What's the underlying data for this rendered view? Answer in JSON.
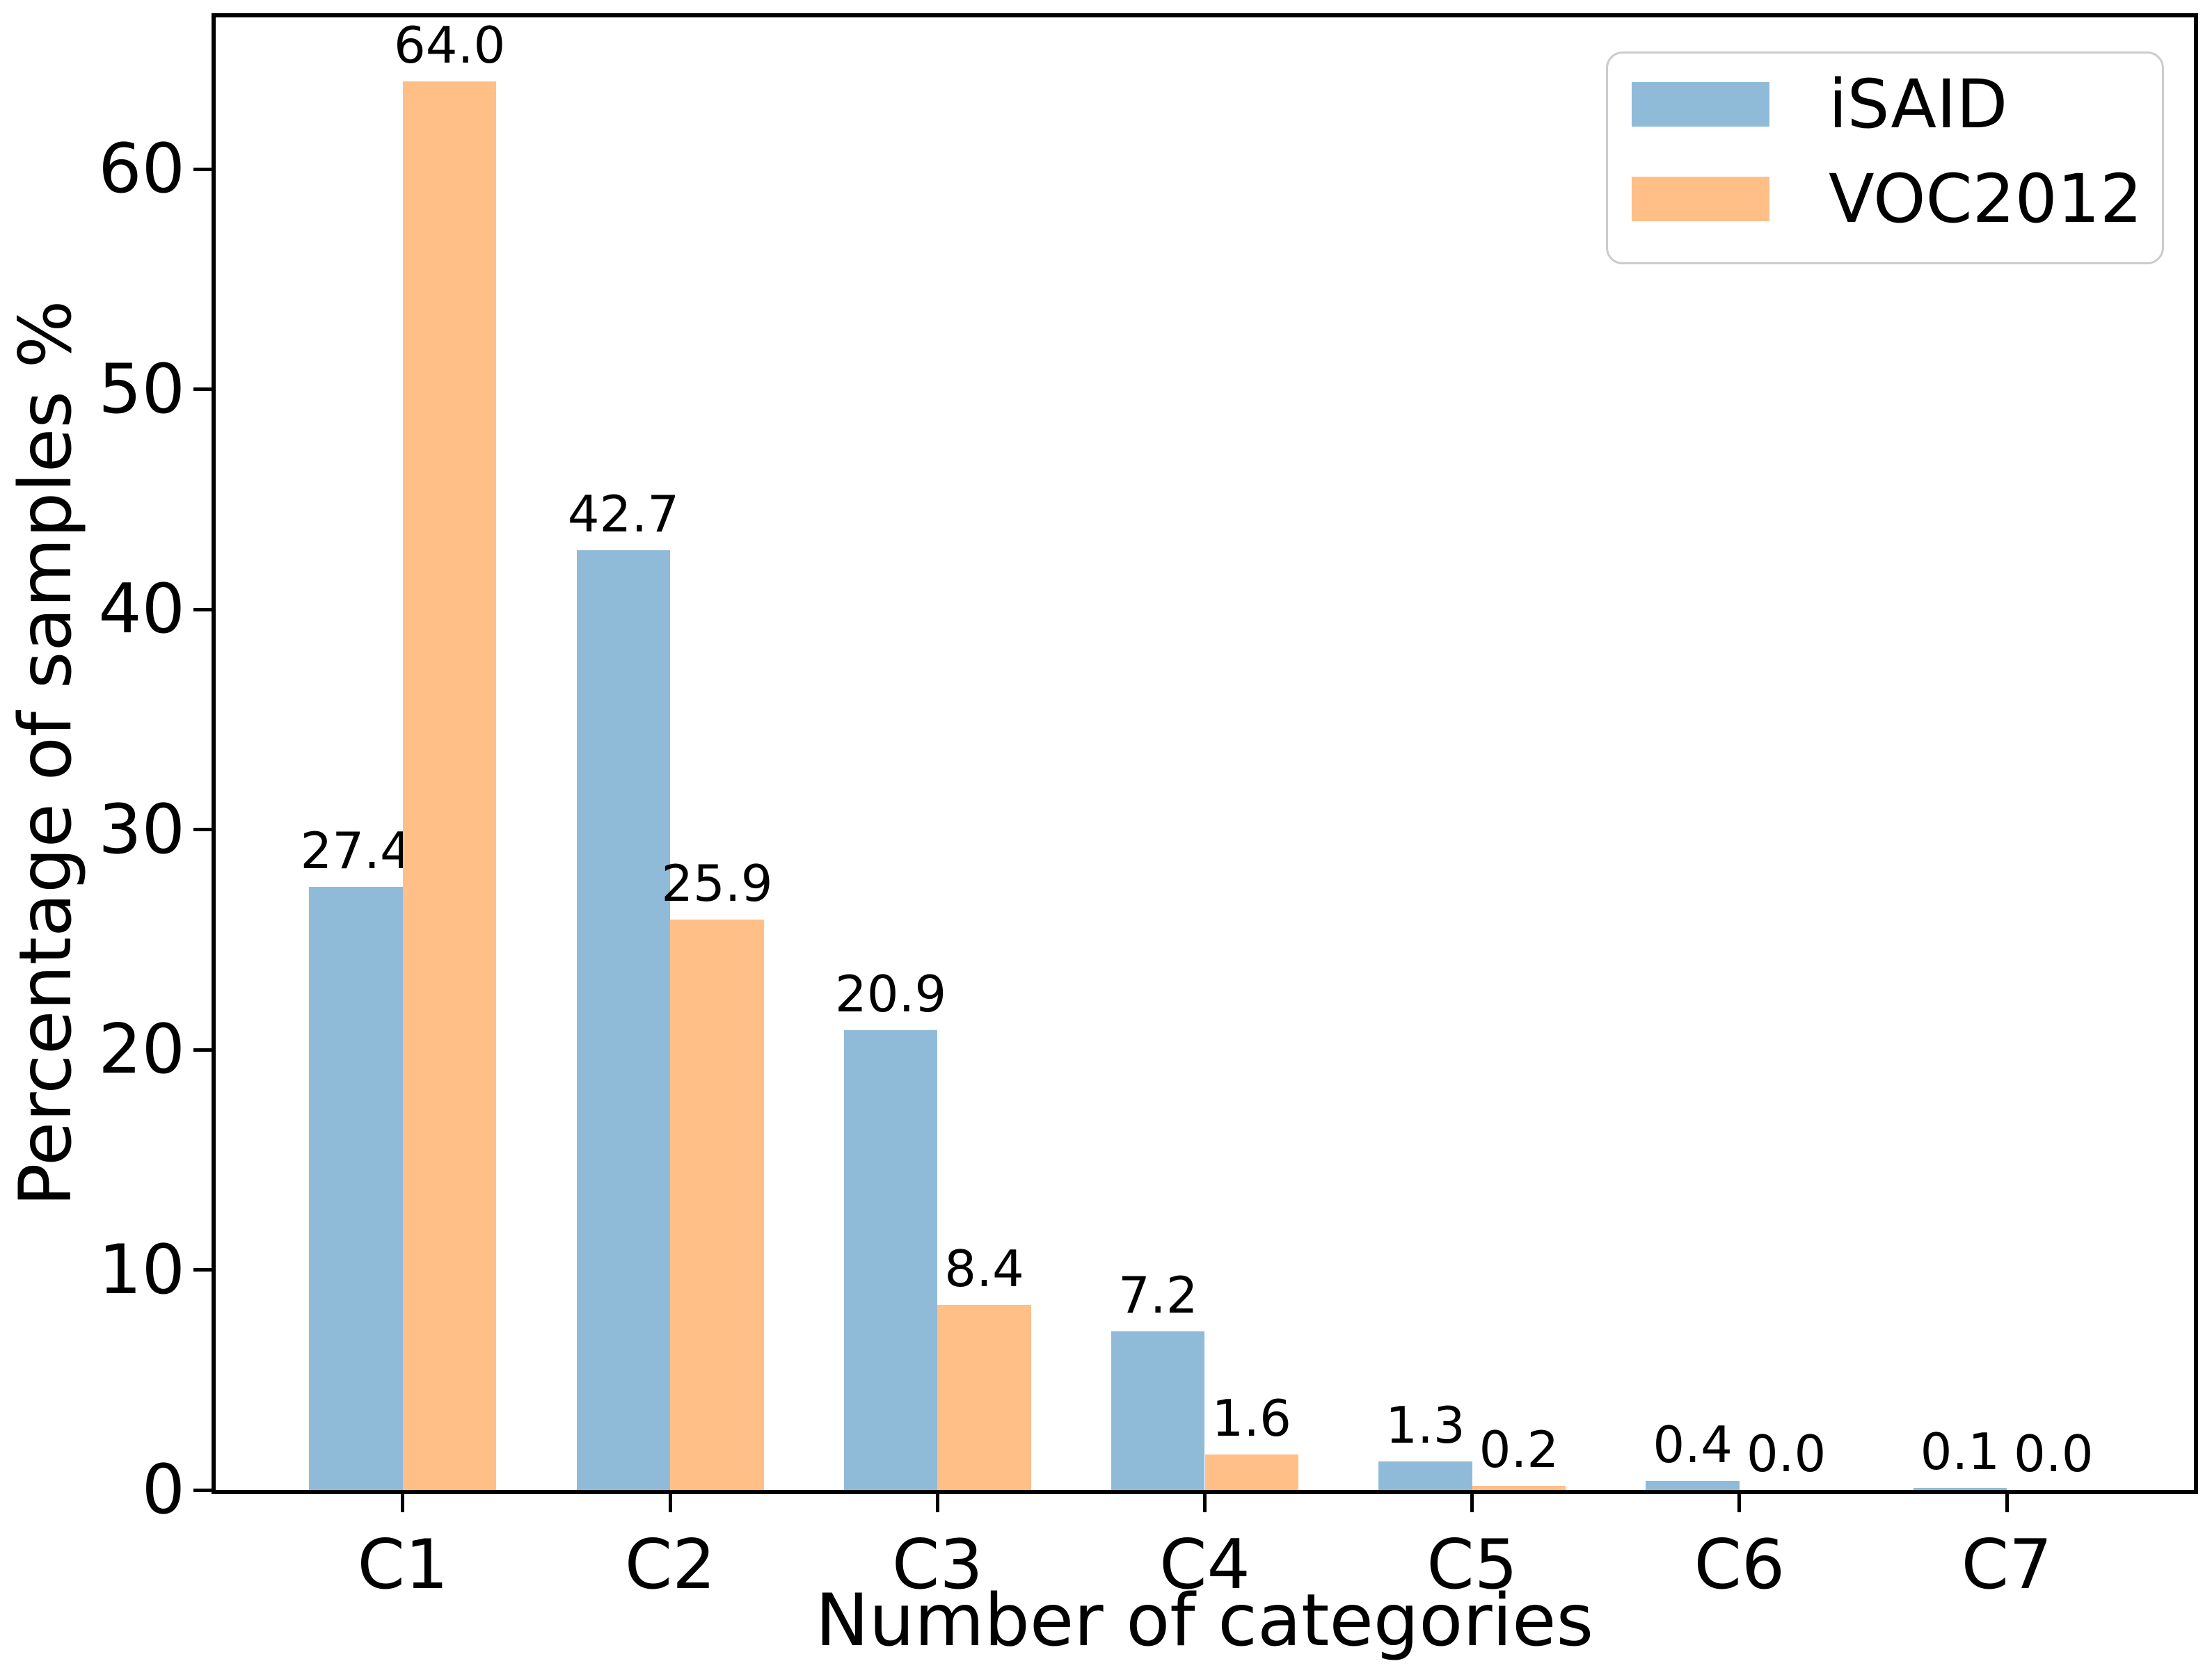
{
  "chart_data": {
    "type": "bar",
    "title": "",
    "xlabel": "Number of categories",
    "ylabel": "Percentage of samples %",
    "categories": [
      "C1",
      "C2",
      "C3",
      "C4",
      "C5",
      "C6",
      "C7"
    ],
    "series": [
      {
        "name": "iSAID",
        "color": "#8FBBD9",
        "values": [
          27.4,
          42.7,
          20.9,
          7.2,
          1.3,
          0.4,
          0.1
        ]
      },
      {
        "name": "VOC2012",
        "color": "#FFBF86",
        "values": [
          64.0,
          25.9,
          8.4,
          1.6,
          0.2,
          0.0,
          0.0
        ]
      }
    ],
    "yticks": [
      0,
      10,
      20,
      30,
      40,
      50,
      60
    ],
    "ylim": [
      0,
      66.9
    ],
    "bar_value_labels_decimals": 1,
    "grid": "off",
    "legend_position": "top-right"
  }
}
